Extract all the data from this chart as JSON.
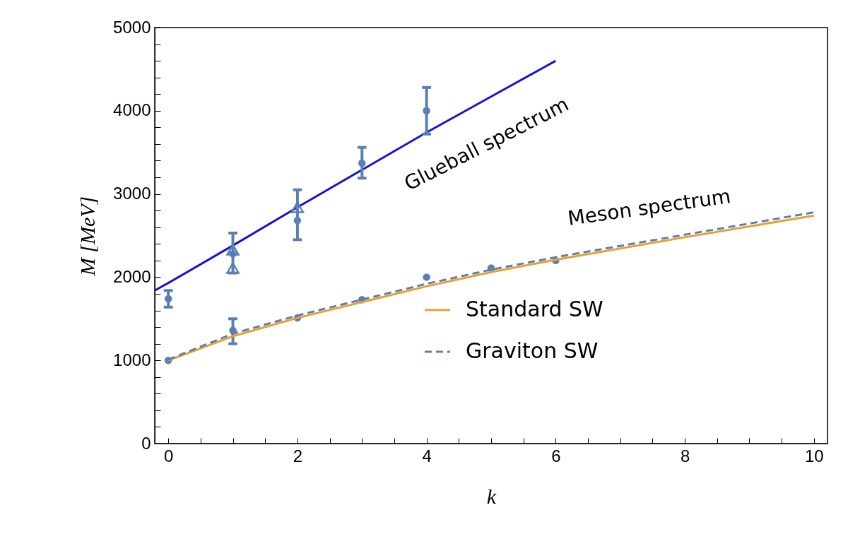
{
  "chart_data": {
    "type": "line",
    "xlabel": "k",
    "ylabel": "M [MeV]",
    "xlim": [
      -0.21,
      10.21
    ],
    "ylim": [
      0,
      5000
    ],
    "xticks": [
      0,
      {
        "value": 0.5,
        "label": null
      },
      {
        "value": 1,
        "label": null
      },
      {
        "value": 1.5,
        "label": null
      },
      2,
      {
        "value": 2.5,
        "label": null
      },
      {
        "value": 3,
        "label": null
      },
      {
        "value": 3.5,
        "label": null
      },
      4,
      {
        "value": 4.5,
        "label": null
      },
      {
        "value": 5,
        "label": null
      },
      {
        "value": 5.5,
        "label": null
      },
      6,
      {
        "value": 6.5,
        "label": null
      },
      {
        "value": 7,
        "label": null
      },
      {
        "value": 7.5,
        "label": null
      },
      8,
      {
        "value": 8.5,
        "label": null
      },
      {
        "value": 9,
        "label": null
      },
      {
        "value": 9.5,
        "label": null
      },
      10
    ],
    "yticks": [
      0,
      {
        "value": 200,
        "label": null
      },
      {
        "value": 400,
        "label": null
      },
      {
        "value": 600,
        "label": null
      },
      {
        "value": 800,
        "label": null
      },
      1000,
      {
        "value": 1200,
        "label": null
      },
      {
        "value": 1400,
        "label": null
      },
      {
        "value": 1600,
        "label": null
      },
      {
        "value": 1800,
        "label": null
      },
      2000,
      {
        "value": 2200,
        "label": null
      },
      {
        "value": 2400,
        "label": null
      },
      {
        "value": 2600,
        "label": null
      },
      {
        "value": 2800,
        "label": null
      },
      3000,
      {
        "value": 3200,
        "label": null
      },
      {
        "value": 3400,
        "label": null
      },
      {
        "value": 3600,
        "label": null
      },
      {
        "value": 3800,
        "label": null
      },
      4000,
      {
        "value": 4200,
        "label": null
      },
      {
        "value": 4400,
        "label": null
      },
      {
        "value": 4600,
        "label": null
      },
      {
        "value": 4800,
        "label": null
      },
      5000
    ],
    "grid": false,
    "legend": "bottom right",
    "series": [
      {
        "color": "#1414d2",
        "line_style": "solid",
        "x": [
          -0.21,
          0,
          1,
          2,
          3,
          4,
          5,
          6
        ],
        "values": [
          1840,
          1930,
          2380,
          2840,
          3290,
          3740,
          4170,
          4600
        ]
      },
      {
        "name": "Standard SW",
        "color": "#e8a030",
        "line_style": "solid",
        "x": [
          0,
          1,
          2,
          3,
          4,
          5,
          6,
          8,
          10
        ],
        "values": [
          1000,
          1290,
          1510,
          1700,
          1890,
          2060,
          2210,
          2480,
          2740
        ]
      },
      {
        "name": "Graviton SW",
        "color": "#5b7fb5",
        "line_style": "dashed",
        "x": [
          0,
          1,
          2,
          3,
          4,
          5,
          6,
          8,
          10
        ],
        "values": [
          1010,
          1320,
          1540,
          1730,
          1920,
          2090,
          2240,
          2510,
          2780
        ]
      },
      {
        "type": "scatter",
        "color": "#5b7fb5",
        "marker": "circle",
        "x": [
          0,
          1,
          2,
          3,
          4
        ],
        "values": [
          1740,
          2280,
          2680,
          3370,
          4000
        ],
        "errors": [
          100,
          [
            2050,
            2530
          ],
          [
            2450,
            3050
          ],
          [
            3190,
            3560
          ],
          [
            3720,
            4280
          ]
        ]
      },
      {
        "type": "scatter",
        "color": "#5b7fb5",
        "marker": "triangle",
        "x": [
          1,
          1,
          2
        ],
        "values": [
          2330,
          2110,
          2840
        ]
      },
      {
        "type": "scatter",
        "color": "#5b7fb5",
        "marker": "circle",
        "x": [
          0,
          1,
          2,
          3,
          4,
          5,
          6
        ],
        "values": [
          1000,
          1360,
          1510,
          1730,
          2000,
          2110,
          2200
        ],
        "errors": [
          null,
          [
            1200,
            1500
          ],
          null,
          null,
          null,
          null,
          null
        ]
      }
    ],
    "annotations": [
      "Glueball spectrum",
      "Meson spectrum"
    ]
  }
}
